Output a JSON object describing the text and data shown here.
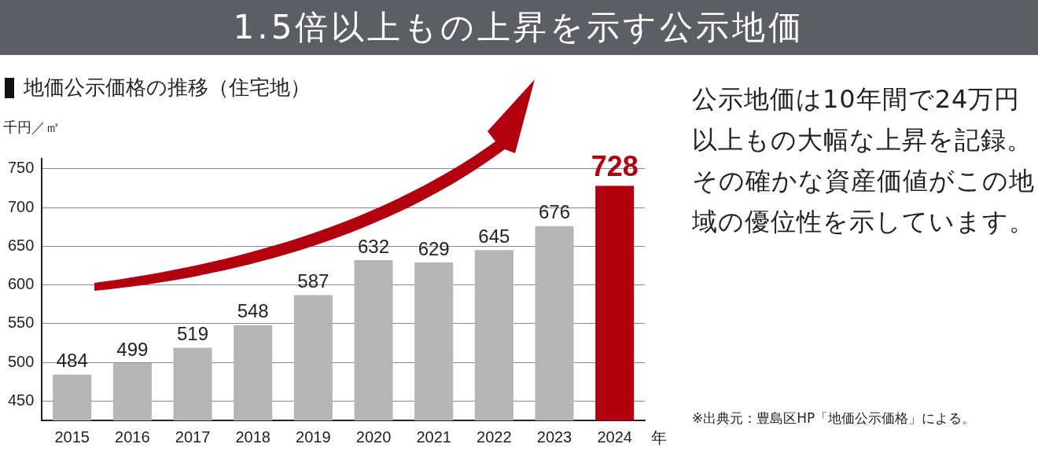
{
  "chart_data": {
    "type": "bar",
    "title": "1.5倍以上もの上昇を示す公示地価",
    "subtitle": "地価公示価格の推移（住宅地）",
    "ylabel": "千円／㎡",
    "xlabel": "年",
    "categories": [
      "2015",
      "2016",
      "2017",
      "2018",
      "2019",
      "2020",
      "2021",
      "2022",
      "2023",
      "2024"
    ],
    "values": [
      484,
      499,
      519,
      548,
      587,
      632,
      629,
      645,
      676,
      728
    ],
    "colors": [
      "#b4b5b5",
      "#b4b5b5",
      "#b4b5b5",
      "#b4b5b5",
      "#b4b5b5",
      "#b4b5b5",
      "#b4b5b5",
      "#b4b5b5",
      "#b4b5b5",
      "#b3000f"
    ],
    "ylim": [
      425,
      763
    ],
    "yticks": [
      450,
      500,
      550,
      600,
      650,
      700,
      750
    ],
    "grid": "y",
    "data_labels": true,
    "legend": false,
    "annotations": [
      "公示地価は10年間で24万円以上もの大幅な上昇を記録。その確かな資産価値がこの地域の優位性を示しています。",
      "※出典元：豊島区HP「地価公示価格」による。"
    ]
  }
}
